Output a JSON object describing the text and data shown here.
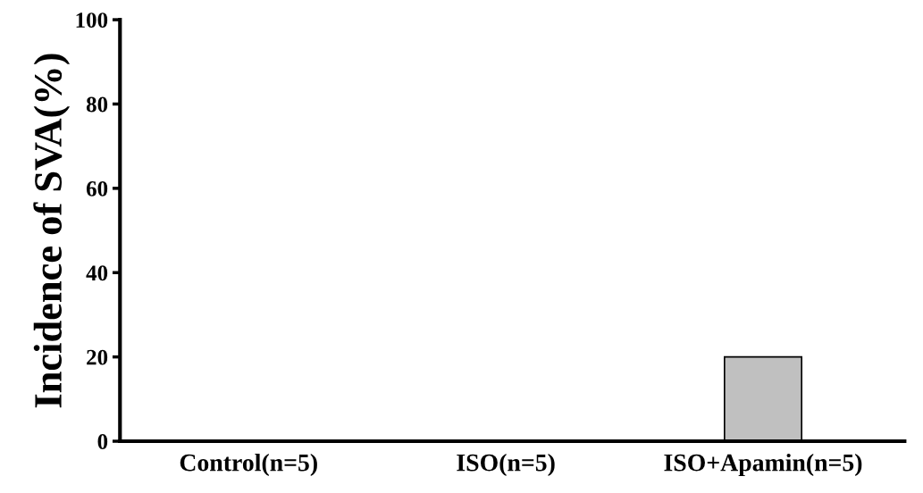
{
  "chart_data": {
    "type": "bar",
    "ylabel": "Incidence of SVA(%)",
    "categories": [
      "Control(n=5)",
      "ISO(n=5)",
      "ISO+Apamin(n=5)"
    ],
    "values": [
      0,
      0,
      20
    ],
    "color": "#c0c0c0",
    "ylim": [
      0,
      100
    ],
    "yticks": [
      0,
      20,
      40,
      60,
      80,
      100
    ],
    "grid": false,
    "legend": false
  }
}
